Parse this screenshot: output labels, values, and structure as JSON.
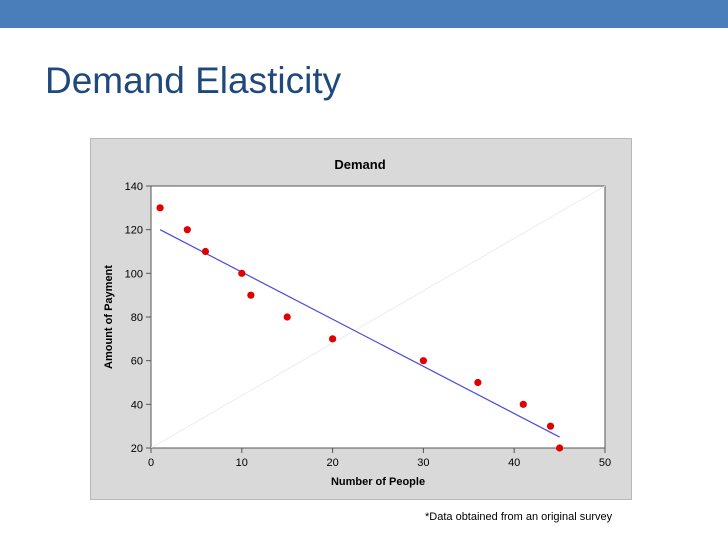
{
  "slide": {
    "title": "Demand Elasticity",
    "footnote": "*Data obtained from an original survey",
    "colors": {
      "top_bar": "#4a7ebb",
      "title": "#1f497d",
      "chart_background": "#d9d9d9",
      "plot_background": "#ffffff",
      "points": "#e00000",
      "fit_line": "#4a4ad8"
    }
  },
  "chart_data": {
    "type": "scatter",
    "title": "Demand",
    "xlabel": "Number of People",
    "ylabel": "Amount of Payment",
    "xlim": [
      0,
      50
    ],
    "ylim": [
      20,
      140
    ],
    "x_ticks": [
      0,
      10,
      20,
      30,
      40,
      50
    ],
    "y_ticks": [
      20,
      40,
      60,
      80,
      100,
      120,
      140
    ],
    "grid": false,
    "legend": "none",
    "series": [
      {
        "points": [
          {
            "x": 1,
            "y": 130
          },
          {
            "x": 4,
            "y": 120
          },
          {
            "x": 6,
            "y": 110
          },
          {
            "x": 10,
            "y": 100
          },
          {
            "x": 11,
            "y": 90
          },
          {
            "x": 15,
            "y": 80
          },
          {
            "x": 20,
            "y": 70
          },
          {
            "x": 30,
            "y": 60
          },
          {
            "x": 36,
            "y": 50
          },
          {
            "x": 41,
            "y": 40
          },
          {
            "x": 44,
            "y": 30
          },
          {
            "x": 45,
            "y": 20
          }
        ]
      }
    ],
    "trendline": {
      "type": "linear",
      "x": [
        1,
        45
      ],
      "y": [
        120,
        25
      ]
    }
  }
}
